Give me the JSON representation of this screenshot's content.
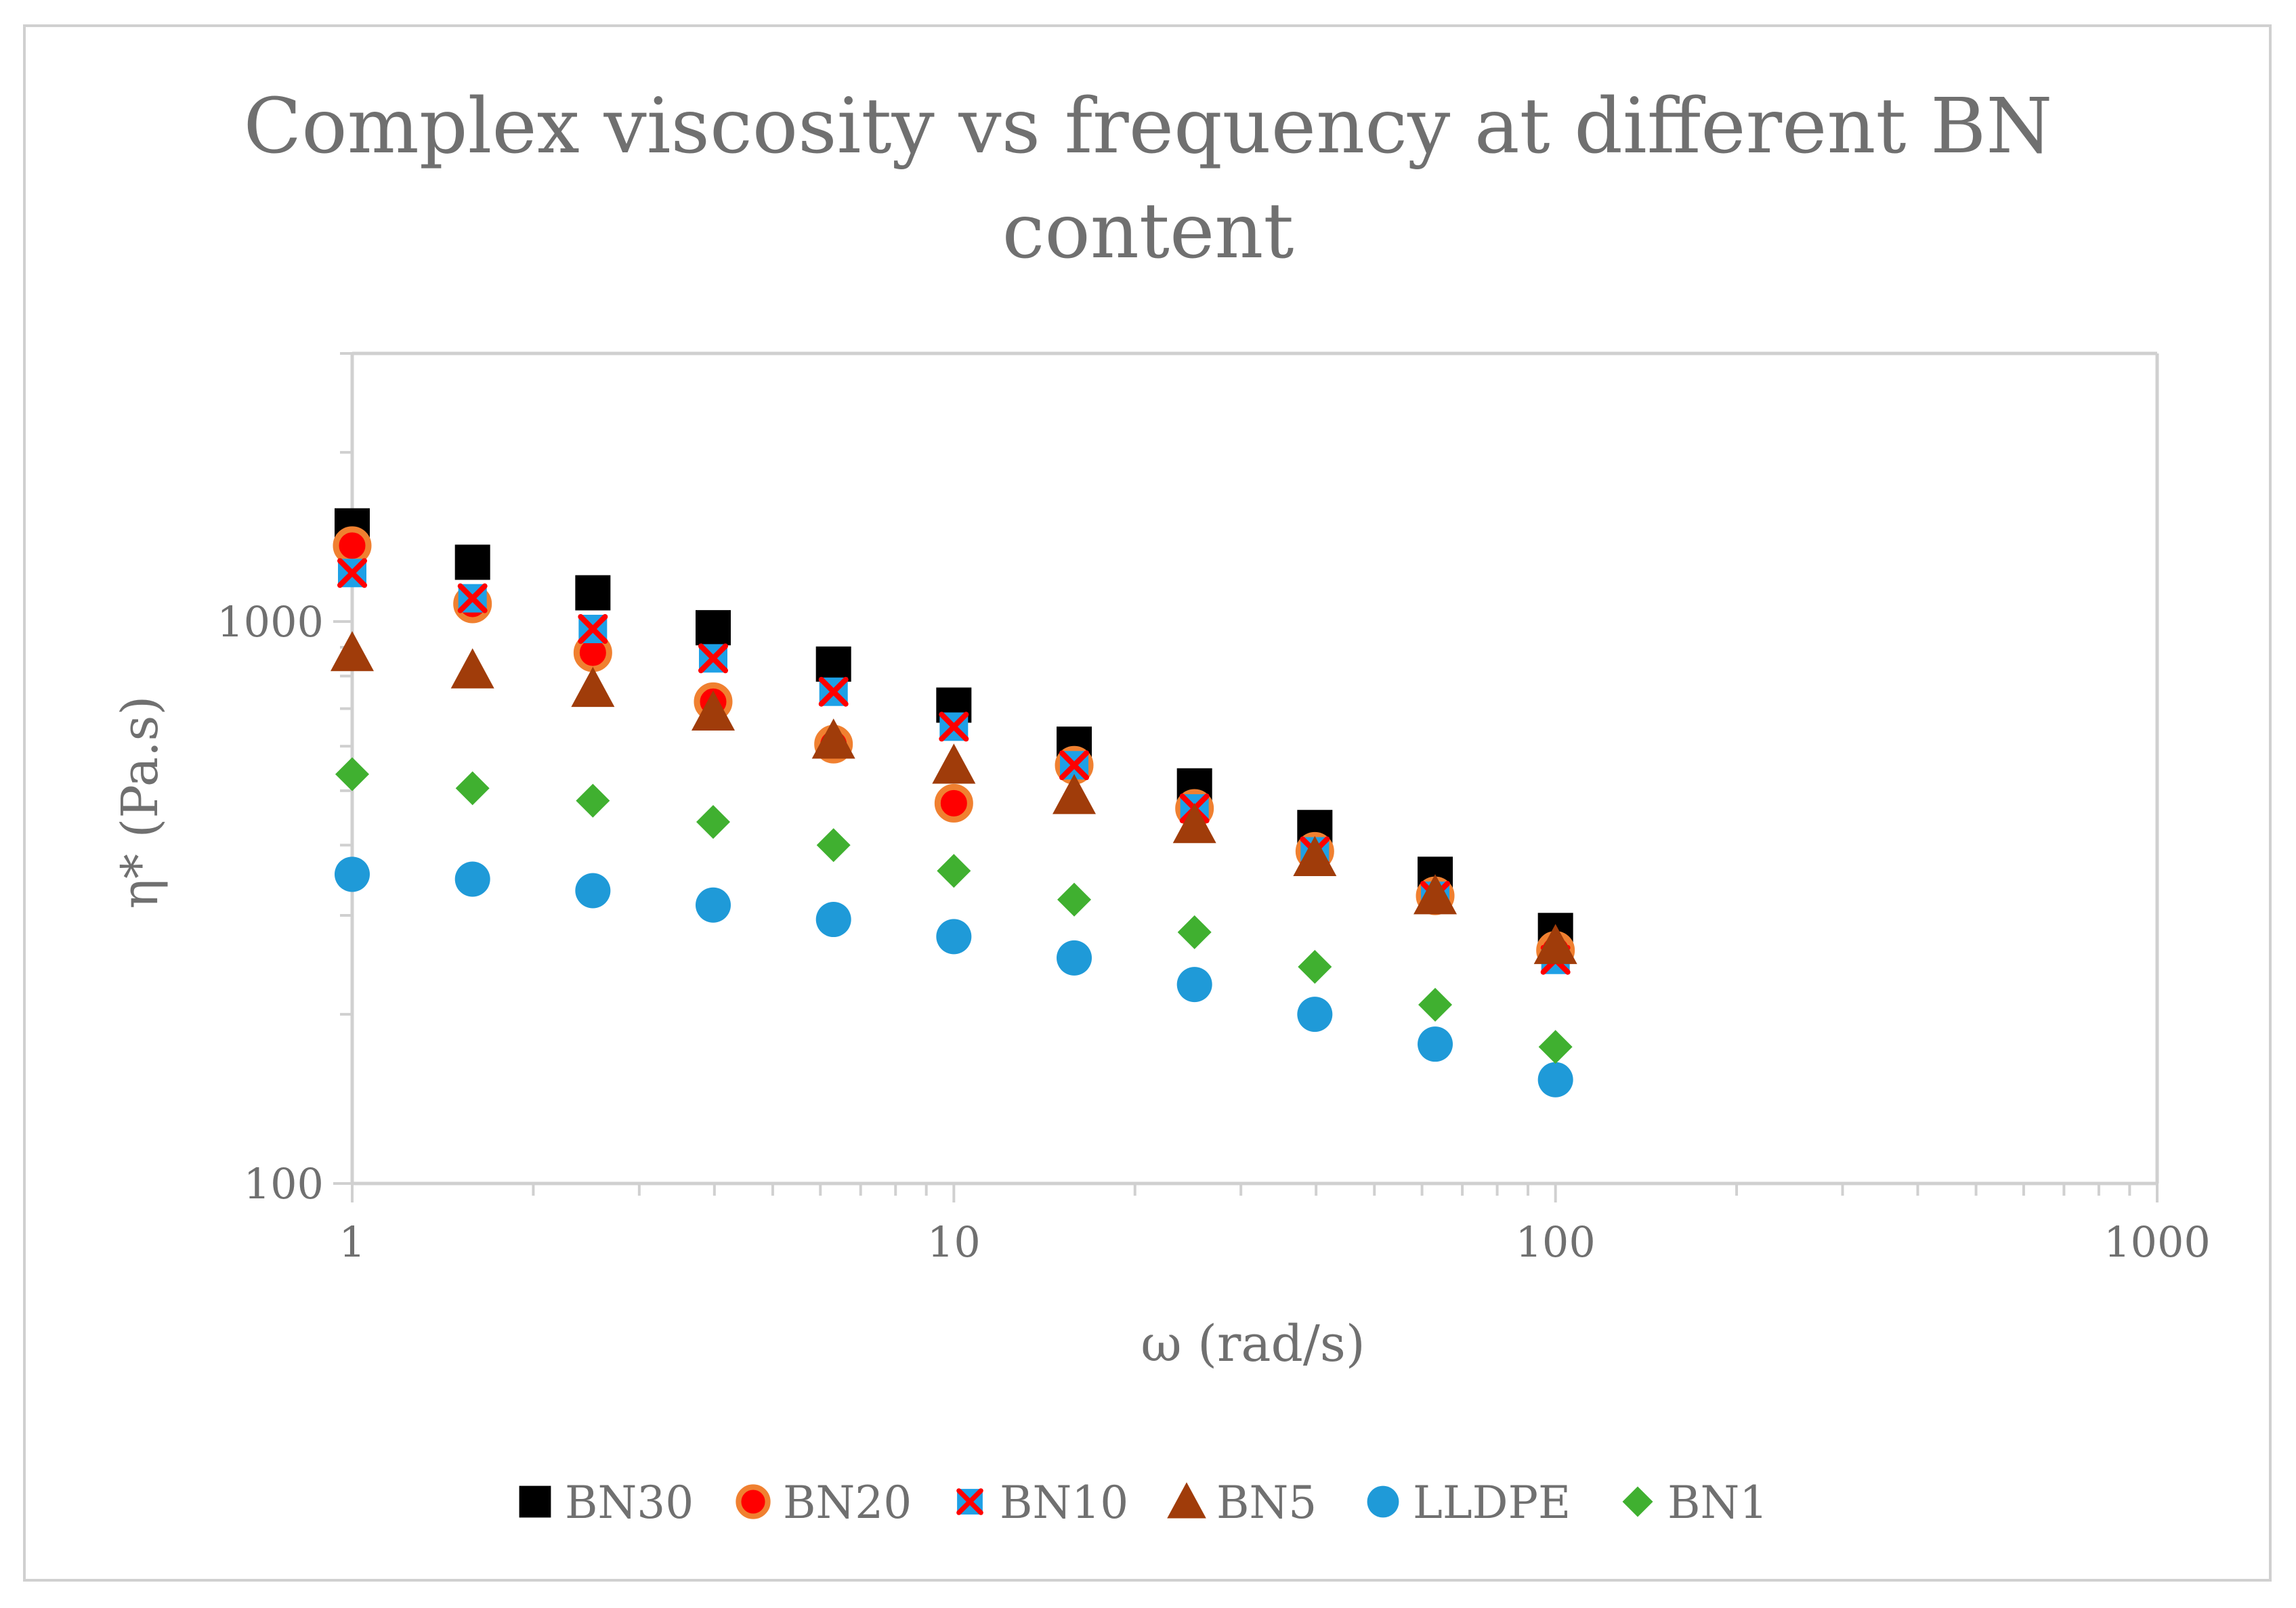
{
  "chart_data": {
    "type": "scatter",
    "title_lines": [
      "Complex viscosity vs frequency at different BN",
      "content"
    ],
    "xlabel": "ω (rad/s)",
    "ylabel": "η* (Pa.s)",
    "xscale": "log",
    "yscale": "log",
    "xlim": [
      1,
      1000
    ],
    "ylim": [
      100,
      3000
    ],
    "x_ticks": [
      "1",
      "10",
      "100",
      "1000"
    ],
    "y_ticks": [
      "100",
      "1000"
    ],
    "grid": false,
    "legend_position": "bottom",
    "x": [
      1,
      1.585,
      2.512,
      3.981,
      6.31,
      10,
      15.85,
      25.12,
      39.81,
      63.1,
      100
    ],
    "series": [
      {
        "name": "BN30",
        "marker": "square",
        "color": "#000000",
        "values": [
          1480,
          1275,
          1125,
          975,
          840,
          710,
          605,
          510,
          430,
          355,
          282
        ]
      },
      {
        "name": "BN20",
        "marker": "circle-ring",
        "color": "#ff0000",
        "edge_color": "#f08030",
        "values": [
          1365,
          1075,
          880,
          720,
          605,
          475,
          555,
          465,
          390,
          325,
          260
        ]
      },
      {
        "name": "BN10",
        "marker": "x-square",
        "color": "#1ea0e6",
        "edge_color": "#ff0000",
        "values": [
          1220,
          1100,
          970,
          860,
          750,
          650,
          555,
          465,
          390,
          325,
          250
        ]
      },
      {
        "name": "BN5",
        "marker": "triangle",
        "color": "#a03c0a",
        "values": [
          880,
          820,
          760,
          690,
          615,
          555,
          490,
          435,
          380,
          325,
          265
        ]
      },
      {
        "name": "LLDPE",
        "marker": "circle",
        "color": "#1f9ad8",
        "values": [
          355,
          348,
          332,
          313,
          295,
          275,
          252,
          226,
          200,
          177,
          153
        ]
      },
      {
        "name": "BN1",
        "marker": "diamond",
        "color": "#40b030",
        "values": [
          535,
          505,
          480,
          440,
          400,
          360,
          320,
          280,
          243,
          208,
          175
        ]
      }
    ]
  }
}
